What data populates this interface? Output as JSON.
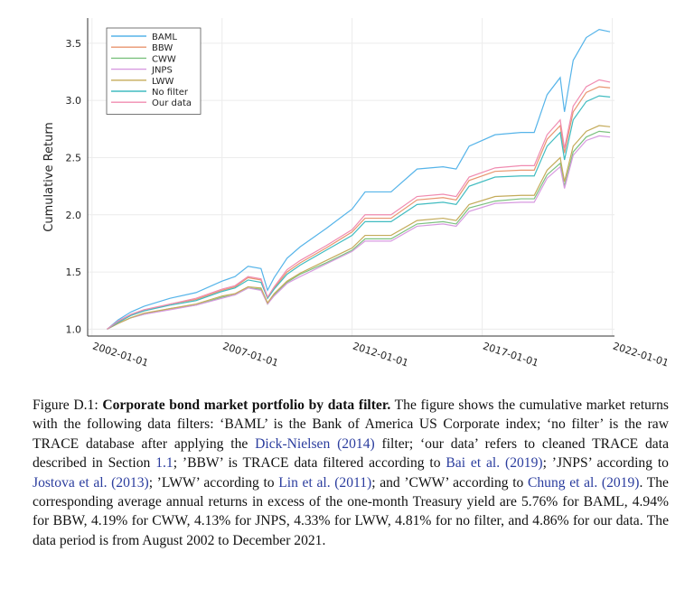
{
  "chart_data": {
    "type": "line",
    "y_label": "Cumulative Return",
    "legend": "top-left",
    "grid": true,
    "xlim": [
      "2001-11-01",
      "2022-02-01"
    ],
    "xticks": [
      "2002-01-01",
      "2007-01-01",
      "2012-01-01",
      "2017-01-01",
      "2022-01-01"
    ],
    "ylim": [
      0.94,
      3.72
    ],
    "yticks": [
      {
        "value": 1,
        "label": "1.0"
      },
      1.5,
      {
        "value": 2,
        "label": "2.0"
      },
      2.5,
      {
        "value": 3,
        "label": "3.0"
      },
      3.5
    ],
    "x": [
      "2002-08-01",
      "2003-01-01",
      "2003-07-01",
      "2004-01-01",
      "2005-01-01",
      "2006-01-01",
      "2007-01-01",
      "2007-07-01",
      "2008-01-01",
      "2008-07-01",
      "2008-10-01",
      "2009-01-01",
      "2009-07-01",
      "2010-01-01",
      "2011-01-01",
      "2012-01-01",
      "2012-07-01",
      "2013-07-01",
      "2014-07-01",
      "2015-07-01",
      "2016-01-01",
      "2016-07-01",
      "2017-07-01",
      "2018-07-01",
      "2019-01-01",
      "2019-07-01",
      "2020-01-01",
      "2020-03-01",
      "2020-07-01",
      "2021-01-01",
      "2021-07-01",
      "2021-12-01"
    ],
    "series": [
      {
        "name": "BAML",
        "color": "#56b4e9",
        "values": [
          1.0,
          1.08,
          1.15,
          1.2,
          1.27,
          1.32,
          1.42,
          1.46,
          1.55,
          1.53,
          1.34,
          1.45,
          1.62,
          1.72,
          1.88,
          2.05,
          2.2,
          2.2,
          2.4,
          2.42,
          2.4,
          2.6,
          2.7,
          2.72,
          2.72,
          3.05,
          3.2,
          2.9,
          3.35,
          3.55,
          3.62,
          3.6
        ]
      },
      {
        "name": "BBW",
        "color": "#e8956f",
        "values": [
          1.0,
          1.06,
          1.12,
          1.16,
          1.22,
          1.26,
          1.34,
          1.37,
          1.45,
          1.43,
          1.27,
          1.36,
          1.5,
          1.58,
          1.71,
          1.85,
          1.97,
          1.97,
          2.13,
          2.15,
          2.13,
          2.3,
          2.38,
          2.39,
          2.39,
          2.66,
          2.78,
          2.54,
          2.9,
          3.07,
          3.12,
          3.11
        ]
      },
      {
        "name": "CWW",
        "color": "#7cc17f",
        "values": [
          1.0,
          1.05,
          1.1,
          1.13,
          1.18,
          1.21,
          1.28,
          1.3,
          1.36,
          1.35,
          1.22,
          1.3,
          1.41,
          1.48,
          1.58,
          1.69,
          1.79,
          1.79,
          1.92,
          1.94,
          1.92,
          2.06,
          2.12,
          2.14,
          2.14,
          2.35,
          2.45,
          2.25,
          2.55,
          2.68,
          2.73,
          2.72
        ]
      },
      {
        "name": "JNPS",
        "color": "#d79ae0",
        "values": [
          1.0,
          1.05,
          1.1,
          1.13,
          1.17,
          1.21,
          1.27,
          1.3,
          1.36,
          1.34,
          1.22,
          1.29,
          1.4,
          1.46,
          1.57,
          1.68,
          1.77,
          1.77,
          1.9,
          1.92,
          1.9,
          2.03,
          2.1,
          2.11,
          2.11,
          2.32,
          2.42,
          2.23,
          2.52,
          2.65,
          2.69,
          2.68
        ]
      },
      {
        "name": "LWW",
        "color": "#c4ab5a",
        "values": [
          1.0,
          1.05,
          1.1,
          1.14,
          1.18,
          1.22,
          1.29,
          1.31,
          1.37,
          1.36,
          1.23,
          1.31,
          1.42,
          1.49,
          1.6,
          1.71,
          1.82,
          1.82,
          1.95,
          1.97,
          1.95,
          2.09,
          2.16,
          2.17,
          2.17,
          2.39,
          2.5,
          2.29,
          2.6,
          2.73,
          2.78,
          2.77
        ]
      },
      {
        "name": "No filter",
        "color": "#41bcc0",
        "values": [
          1.0,
          1.06,
          1.12,
          1.16,
          1.21,
          1.25,
          1.33,
          1.36,
          1.43,
          1.41,
          1.27,
          1.35,
          1.48,
          1.56,
          1.69,
          1.82,
          1.94,
          1.94,
          2.09,
          2.11,
          2.09,
          2.25,
          2.33,
          2.34,
          2.34,
          2.6,
          2.72,
          2.48,
          2.83,
          2.99,
          3.04,
          3.03
        ]
      },
      {
        "name": "Our data",
        "color": "#f08bb0",
        "values": [
          1.0,
          1.07,
          1.13,
          1.17,
          1.22,
          1.27,
          1.35,
          1.38,
          1.46,
          1.44,
          1.28,
          1.37,
          1.52,
          1.6,
          1.73,
          1.87,
          2.0,
          2.0,
          2.16,
          2.18,
          2.16,
          2.33,
          2.41,
          2.43,
          2.43,
          2.7,
          2.83,
          2.58,
          2.95,
          3.12,
          3.18,
          3.16
        ]
      }
    ]
  },
  "caption": {
    "label": "Figure D.1:",
    "title": "Corporate bond market portfolio by data filter.",
    "body": [
      {
        "text": " The figure shows the cumulative market returns with the following data filters: ‘BAML’ is the Bank of America US Corporate index; ‘no filter’ is the raw TRACE database after applying the ",
        "link": false
      },
      {
        "text": "Dick-Nielsen (2014)",
        "link": true
      },
      {
        "text": " filter; ‘our data’ refers to cleaned TRACE data described in Section ",
        "link": false
      },
      {
        "text": "1.1",
        "link": true
      },
      {
        "text": "; ’BBW’ is TRACE data filtered according to ",
        "link": false
      },
      {
        "text": "Bai et al. (2019)",
        "link": true
      },
      {
        "text": "; ’JNPS’ according to ",
        "link": false
      },
      {
        "text": "Jostova et al. (2013)",
        "link": true
      },
      {
        "text": "; ’LWW’ according to ",
        "link": false
      },
      {
        "text": "Lin et al. (2011)",
        "link": true
      },
      {
        "text": "; and ’CWW’ according to ",
        "link": false
      },
      {
        "text": "Chung et al. (2019)",
        "link": true
      },
      {
        "text": ". The corresponding average annual returns in excess of the one-month Treasury yield are 5.76% for BAML, 4.94% for BBW, 4.19% for CWW, 4.13% for JNPS, 4.33% for LWW, 4.81% for no filter, and 4.86% for our data. The data period is from August 2002 to December 2021.",
        "link": false
      }
    ]
  }
}
